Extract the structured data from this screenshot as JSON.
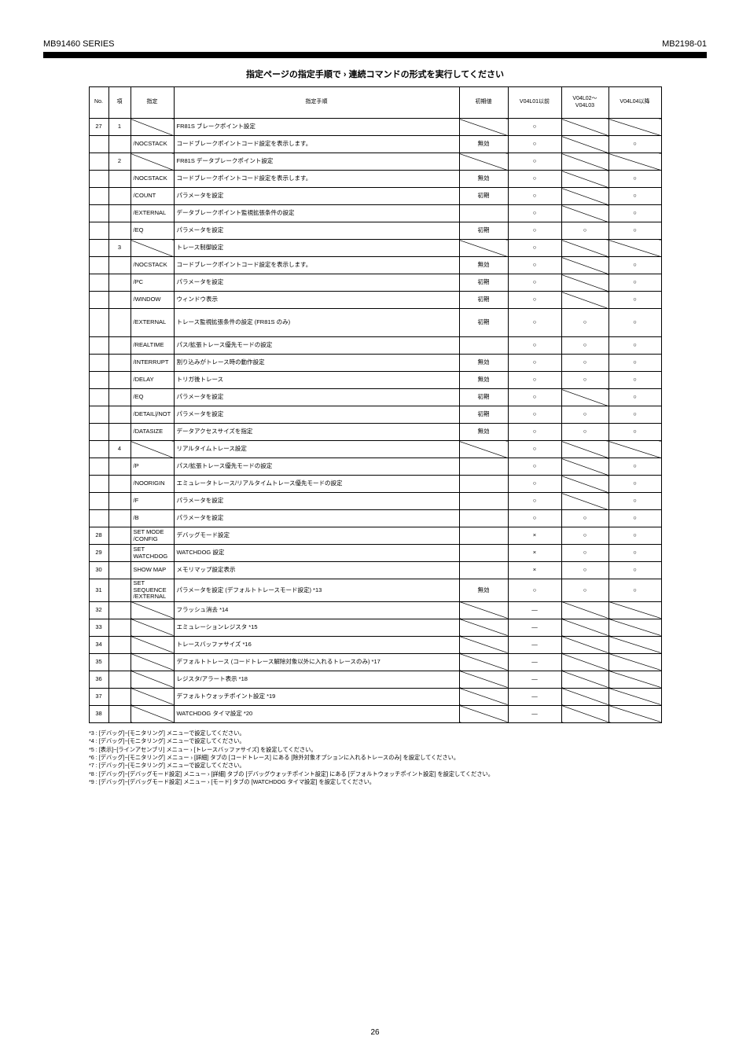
{
  "header": {
    "left": "MB91460 SERIES",
    "right": "MB2198-01"
  },
  "table_title": "指定ページの指定手順で › 連続コマンドの形式を実行してください",
  "columns": [
    "No.",
    "項",
    "指定",
    "指定手順",
    "初期値",
    "V04L01以前",
    "V04L02〜V04L03",
    "V04L04以降"
  ],
  "rows": [
    {
      "no": "27",
      "sub": "1",
      "cmd_diag": true,
      "desc": "FR81S ブレークポイント設定",
      "init_diag": true,
      "v1": "○",
      "v2_diag": true,
      "v3_diag": true
    },
    {
      "no": "",
      "sub": "",
      "cmd": "/NOCSTACK",
      "desc": "コードブレークポイントコード設定を表示します。",
      "init": "無効",
      "v1": "○",
      "v2_diag": true,
      "v3": "○"
    },
    {
      "no": "",
      "sub": "2",
      "cmd_diag": true,
      "desc": "FR81S データブレークポイント設定",
      "init_diag": true,
      "v1": "○",
      "v2_diag": true,
      "v3_diag": true
    },
    {
      "no": "",
      "sub": "",
      "cmd": "/NOCSTACK",
      "desc": "コードブレークポイントコード設定を表示します。",
      "init": "無効",
      "v1": "○",
      "v2_diag": true,
      "v3": "○"
    },
    {
      "no": "",
      "sub": "",
      "cmd": "/COUNT",
      "desc": "パラメータを設定",
      "init": "初期",
      "v1": "○",
      "v2_diag": true,
      "v3": "○"
    },
    {
      "no": "",
      "sub": "",
      "cmd": "/EXTERNAL",
      "desc": "データブレークポイント監視拡張条件の設定",
      "init": "",
      "v1": "○",
      "v2_diag": true,
      "v3": "○"
    },
    {
      "no": "",
      "sub": "",
      "cmd": "/EQ",
      "desc": "パラメータを設定",
      "init": "初期",
      "v1": "○",
      "v2": "○",
      "v3": "○"
    },
    {
      "no": "",
      "sub": "3",
      "cmd_diag": true,
      "desc": "トレース制御設定",
      "init_diag": true,
      "v1": "○",
      "v2_diag": true,
      "v3_diag": true
    },
    {
      "no": "",
      "sub": "",
      "cmd": "/NOCSTACK",
      "desc": "コードブレークポイントコード設定を表示します。",
      "init": "無効",
      "v1": "○",
      "v2_diag": true,
      "v3": "○"
    },
    {
      "no": "",
      "sub": "",
      "cmd": "/PC",
      "desc": "パラメータを設定",
      "init": "初期",
      "v1": "○",
      "v2_diag": true,
      "v3": "○"
    },
    {
      "no": "",
      "sub": "",
      "cmd": "/WINDOW",
      "desc": "ウィンドウ表示",
      "init": "初期",
      "v1": "○",
      "v2_diag": true,
      "v3": "○"
    },
    {
      "no": "",
      "sub": "",
      "cmd": "/EXTERNAL",
      "desc": "トレース監視拡張条件の設定 (FR81S のみ)",
      "init": "初期",
      "v1": "○",
      "v2": "○",
      "v3": "○",
      "tall": true
    },
    {
      "no": "",
      "sub": "",
      "cmd": "/REALTIME",
      "desc": "パス/拡張トレース優先モードの設定",
      "init": "",
      "v1": "○",
      "v2": "○",
      "v3": "○"
    },
    {
      "no": "",
      "sub": "",
      "cmd": "/INTERRUPT",
      "desc": "割り込みがトレース時の動作設定",
      "init": "無効",
      "v1": "○",
      "v2": "○",
      "v3": "○"
    },
    {
      "no": "",
      "sub": "",
      "cmd": "/DELAY",
      "desc": "トリガ後トレース",
      "init": "無効",
      "v1": "○",
      "v2": "○",
      "v3": "○"
    },
    {
      "no": "",
      "sub": "",
      "cmd": "/EQ",
      "desc": "パラメータを設定",
      "init": "初期",
      "v1": "○",
      "v2_diag": true,
      "v3": "○"
    },
    {
      "no": "",
      "sub": "",
      "cmd": "/DETAIL|/NOT",
      "desc": "パラメータを設定",
      "init": "初期",
      "v1": "○",
      "v2": "○",
      "v3": "○"
    },
    {
      "no": "",
      "sub": "",
      "cmd": "/DATASIZE",
      "desc": "データアクセスサイズを指定",
      "init": "無効",
      "v1": "○",
      "v2": "○",
      "v3": "○"
    },
    {
      "no": "",
      "sub": "4",
      "cmd_diag": true,
      "desc": "リアルタイムトレース設定",
      "init_diag": true,
      "v1": "○",
      "v2_diag": true,
      "v3_diag": true
    },
    {
      "no": "",
      "sub": "",
      "cmd": "/P",
      "desc": "パス/拡張トレース優先モードの設定",
      "init": "",
      "v1": "○",
      "v2_diag": true,
      "v3": "○"
    },
    {
      "no": "",
      "sub": "",
      "cmd": "/NOORIGIN",
      "desc": "エミュレータトレース/リアルタイムトレース優先モードの設定",
      "init": "",
      "v1": "○",
      "v2_diag": true,
      "v3": "○"
    },
    {
      "no": "",
      "sub": "",
      "cmd": "/F",
      "desc": "パラメータを設定",
      "init": "",
      "v1": "○",
      "v2_diag": true,
      "v3": "○"
    },
    {
      "no": "",
      "sub": "",
      "cmd": "/B",
      "desc": "パラメータを設定",
      "init": "",
      "v1": "○",
      "v2": "○",
      "v3": "○"
    },
    {
      "no": "28",
      "sub": "",
      "cmd": "SET MODE /CONFIG",
      "desc": "デバッグモード設定",
      "init": "",
      "v1": "×",
      "v2": "○",
      "v3": "○"
    },
    {
      "no": "29",
      "sub": "",
      "cmd": "SET WATCHDOG",
      "desc": "WATCHDOG 設定",
      "init": "",
      "v1": "×",
      "v2": "○",
      "v3": "○"
    },
    {
      "no": "30",
      "sub": "",
      "cmd": "SHOW MAP",
      "desc": "メモリマップ設定表示",
      "init": "",
      "v1": "×",
      "v2": "○",
      "v3": "○"
    },
    {
      "no": "31",
      "sub": "",
      "cmd": "SET SEQUENCE /EXTERNAL",
      "desc": "パラメータを設定 (デフォルトトレースモード設定) *13",
      "init": "無効",
      "v1": "○",
      "v2": "○",
      "v3": "○"
    },
    {
      "no": "32",
      "sub": "",
      "cmd_diag": true,
      "desc": "フラッシュ消去 *14",
      "init_diag": true,
      "v1": "―",
      "v2_diag": true,
      "v3_diag": true
    },
    {
      "no": "33",
      "sub": "",
      "cmd_diag": true,
      "desc": "エミュレーションレジスタ *15",
      "init_diag": true,
      "v1": "―",
      "v2_diag": true,
      "v3_diag": true
    },
    {
      "no": "34",
      "sub": "",
      "cmd_diag": true,
      "desc": "トレースバッファサイズ *16",
      "init_diag": true,
      "v1": "―",
      "v2_diag": true,
      "v3_diag": true
    },
    {
      "no": "35",
      "sub": "",
      "cmd_diag": true,
      "desc": "デフォルトトレース (コードトレース解除対象以外に入れるトレースのみ) *17",
      "init_diag": true,
      "v1": "―",
      "v2_diag": true,
      "v3_diag": true
    },
    {
      "no": "36",
      "sub": "",
      "cmd_diag": true,
      "desc": "レジスタ/アラート表示 *18",
      "init_diag": true,
      "v1": "―",
      "v2_diag": true,
      "v3_diag": true
    },
    {
      "no": "37",
      "sub": "",
      "cmd_diag": true,
      "desc": "デフォルトウォッチポイント設定 *19",
      "init_diag": true,
      "v1": "―",
      "v2_diag": true,
      "v3_diag": true
    },
    {
      "no": "38",
      "sub": "",
      "cmd_diag": true,
      "desc": "WATCHDOG タイマ設定 *20",
      "init_diag": true,
      "v1": "―",
      "v2_diag": true,
      "v3_diag": true
    }
  ],
  "footnotes": [
    "*3 : [デバッグ]−[モニタリング] メニューで設定してください。",
    "*4 : [デバッグ]−[モニタリング] メニューで設定してください。",
    "*5 : [表示]−[ラインアセンブリ] メニュー › [トレースバッファサイズ] を設定してください。",
    "*6 : [デバッグ]−[モニタリング] メニュー › [詳細] タブの [コードトレース] にある [除外対象オプションに入れるトレースのみ] を設定してください。",
    "*7 : [デバッグ]−[モニタリング] メニューで設定してください。",
    "*8 : [デバッグ]−[デバッグモード設定] メニュー › [詳細] タブの [デバッグウォッチポイント設定] にある [デフォルトウォッチポイント設定] を設定してください。",
    "*9 : [デバッグ]−[デバッグモード設定] メニュー › [モード] タブの [WATCHDOG タイマ設定] を設定してください。"
  ],
  "page_number": "26"
}
